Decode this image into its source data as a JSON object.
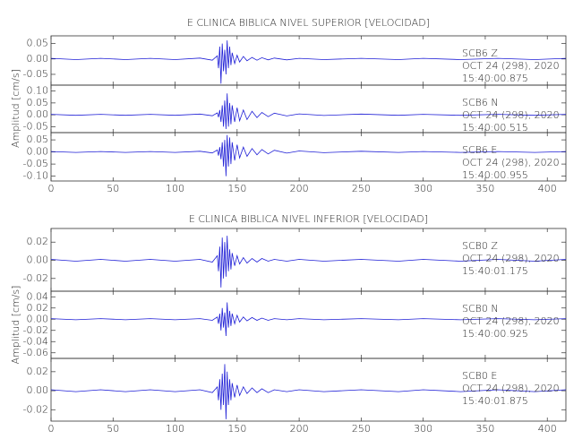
{
  "chart_data": [
    {
      "type": "line",
      "title": "E CLINICA BIBLICA NIVEL SUPERIOR [VELOCIDAD]",
      "ylabel": "Amplitud [cm/s]",
      "xlim": [
        0,
        415
      ],
      "xticks": [
        0,
        50,
        100,
        150,
        200,
        250,
        300,
        350,
        400
      ],
      "x": [
        0,
        20,
        40,
        60,
        80,
        100,
        120,
        130,
        134,
        135,
        136,
        137,
        138,
        139,
        140,
        141,
        142,
        143,
        144,
        145,
        146,
        148,
        150,
        152,
        155,
        158,
        162,
        166,
        170,
        175,
        180,
        190,
        200,
        220,
        250,
        280,
        300,
        330,
        360,
        390,
        415
      ],
      "panels": [
        {
          "labels": [
            "SCB6   Z",
            "OCT 24 (298), 2020",
            "15:40:00.875"
          ],
          "color": "#1f1fd6",
          "ylim": [
            -0.085,
            0.075
          ],
          "yticks": [
            {
              "value": 0.05,
              "label": "0.05"
            },
            {
              "value": 0,
              "label": "0.00"
            },
            {
              "value": -0.05,
              "label": "-0.05"
            }
          ],
          "values": [
            0.002,
            -0.002,
            0.002,
            -0.002,
            0.002,
            -0.002,
            0.003,
            -0.004,
            0.01,
            -0.03,
            0.04,
            -0.08,
            0.05,
            -0.04,
            0.03,
            -0.05,
            0.06,
            -0.03,
            0.04,
            -0.02,
            0.02,
            -0.015,
            0.012,
            -0.01,
            0.008,
            -0.006,
            0.005,
            -0.004,
            0.004,
            -0.003,
            0.003,
            -0.003,
            0.002,
            -0.002,
            0.002,
            -0.002,
            0.002,
            -0.002,
            0.002,
            -0.002,
            0.002
          ]
        },
        {
          "labels": [
            "SCB6   N",
            "OCT 24 (298), 2020",
            "15:40:00.515"
          ],
          "color": "#1f1fd6",
          "ylim": [
            -0.075,
            0.125
          ],
          "yticks": [
            {
              "value": 0.1,
              "label": "0.10"
            },
            {
              "value": 0.05,
              "label": "0.05"
            },
            {
              "value": 0,
              "label": "0.00"
            },
            {
              "value": -0.05,
              "label": "-0.05"
            }
          ],
          "values": [
            0.002,
            -0.002,
            0.002,
            -0.002,
            0.002,
            -0.002,
            0.003,
            -0.004,
            0.008,
            -0.01,
            0.02,
            -0.03,
            0.04,
            -0.05,
            0.06,
            -0.06,
            0.09,
            -0.05,
            0.05,
            -0.04,
            0.04,
            -0.03,
            0.03,
            -0.025,
            0.02,
            -0.02,
            0.015,
            -0.012,
            0.01,
            -0.008,
            0.007,
            -0.005,
            0.004,
            -0.003,
            0.003,
            -0.002,
            0.002,
            -0.002,
            0.002,
            -0.002,
            0.002
          ]
        },
        {
          "labels": [
            "SCB6   E",
            "OCT 24 (298), 2020",
            "15:40:00.955"
          ],
          "color": "#1f1fd6",
          "ylim": [
            -0.12,
            0.08
          ],
          "yticks": [
            {
              "value": 0.05,
              "label": "0.05"
            },
            {
              "value": 0,
              "label": "0.00"
            },
            {
              "value": -0.05,
              "label": "-0.05"
            },
            {
              "value": -0.1,
              "label": "-0.10"
            }
          ],
          "values": [
            0.002,
            -0.002,
            0.002,
            -0.002,
            0.002,
            -0.002,
            0.003,
            -0.004,
            0.008,
            -0.015,
            0.02,
            -0.03,
            0.04,
            -0.06,
            0.05,
            -0.1,
            0.07,
            -0.06,
            0.06,
            -0.05,
            0.04,
            -0.035,
            0.03,
            -0.025,
            0.02,
            -0.018,
            0.014,
            -0.012,
            0.01,
            -0.008,
            0.007,
            -0.005,
            0.004,
            -0.003,
            0.003,
            -0.002,
            0.002,
            -0.002,
            0.002,
            -0.002,
            0.002
          ]
        }
      ]
    },
    {
      "type": "line",
      "title": "E CLINICA BIBLICA NIVEL INFERIOR [VELOCIDAD]",
      "ylabel": "Amplitud [cm/s]",
      "xlim": [
        0,
        415
      ],
      "xticks": [
        0,
        50,
        100,
        150,
        200,
        250,
        300,
        350,
        400
      ],
      "x": [
        0,
        20,
        40,
        60,
        80,
        100,
        120,
        130,
        134,
        135,
        136,
        137,
        138,
        139,
        140,
        141,
        142,
        143,
        144,
        145,
        146,
        148,
        150,
        152,
        155,
        158,
        162,
        166,
        170,
        175,
        180,
        190,
        200,
        220,
        250,
        280,
        300,
        330,
        360,
        390,
        415
      ],
      "panels": [
        {
          "labels": [
            "SCB0   Z",
            "OCT 24 (298), 2020",
            "15:40:01.175"
          ],
          "color": "#1f1fd6",
          "ylim": [
            -0.034,
            0.035
          ],
          "yticks": [
            {
              "value": 0.02,
              "label": "0.02"
            },
            {
              "value": 0,
              "label": "0.00"
            },
            {
              "value": -0.02,
              "label": "-0.02"
            }
          ],
          "values": [
            0.001,
            -0.001,
            0.001,
            -0.001,
            0.001,
            -0.001,
            0.001,
            -0.002,
            0.005,
            -0.012,
            0.015,
            -0.03,
            0.025,
            -0.02,
            0.02,
            -0.018,
            0.027,
            -0.012,
            0.012,
            -0.01,
            0.008,
            -0.006,
            0.005,
            -0.004,
            0.003,
            -0.003,
            0.002,
            -0.002,
            0.002,
            -0.001,
            0.001,
            -0.001,
            0.001,
            -0.001,
            0.001,
            -0.001,
            0.001,
            -0.001,
            0.001,
            -0.001,
            0.001
          ]
        },
        {
          "labels": [
            "SCB0   N",
            "OCT 24 (298), 2020",
            "15:40:00.925"
          ],
          "color": "#1f1fd6",
          "ylim": [
            -0.07,
            0.05
          ],
          "yticks": [
            {
              "value": 0.04,
              "label": "0.04"
            },
            {
              "value": 0.02,
              "label": "0.02"
            },
            {
              "value": 0,
              "label": "0.00"
            },
            {
              "value": -0.02,
              "label": "-0.02"
            },
            {
              "value": -0.04,
              "label": "-0.04"
            },
            {
              "value": -0.06,
              "label": "-0.06"
            }
          ],
          "values": [
            0.001,
            -0.001,
            0.001,
            -0.001,
            0.001,
            -0.001,
            0.001,
            -0.002,
            0.004,
            -0.008,
            0.01,
            -0.02,
            0.02,
            -0.015,
            0.012,
            -0.03,
            0.03,
            -0.015,
            0.015,
            -0.012,
            0.01,
            -0.008,
            0.007,
            -0.005,
            0.004,
            -0.003,
            0.003,
            -0.002,
            0.002,
            -0.002,
            0.001,
            -0.001,
            0.001,
            -0.001,
            0.001,
            -0.001,
            0.001,
            -0.001,
            0.001,
            -0.001,
            0.001
          ]
        },
        {
          "labels": [
            "SCB0   E",
            "OCT 24 (298), 2020",
            "15:40:01.875"
          ],
          "color": "#1f1fd6",
          "ylim": [
            -0.032,
            0.034
          ],
          "yticks": [
            {
              "value": 0.02,
              "label": "0.02"
            },
            {
              "value": 0,
              "label": "0.00"
            },
            {
              "value": -0.02,
              "label": "-0.02"
            }
          ],
          "values": [
            0.001,
            -0.001,
            0.001,
            -0.001,
            0.001,
            -0.001,
            0.001,
            -0.002,
            0.004,
            -0.01,
            0.012,
            -0.02,
            0.018,
            -0.015,
            0.028,
            -0.03,
            0.02,
            -0.015,
            0.012,
            -0.01,
            0.008,
            -0.007,
            0.006,
            -0.005,
            0.004,
            -0.003,
            0.003,
            -0.002,
            0.002,
            -0.002,
            0.001,
            -0.001,
            0.001,
            -0.001,
            0.001,
            -0.001,
            0.001,
            -0.001,
            0.001,
            -0.001,
            0.001
          ]
        }
      ]
    }
  ]
}
